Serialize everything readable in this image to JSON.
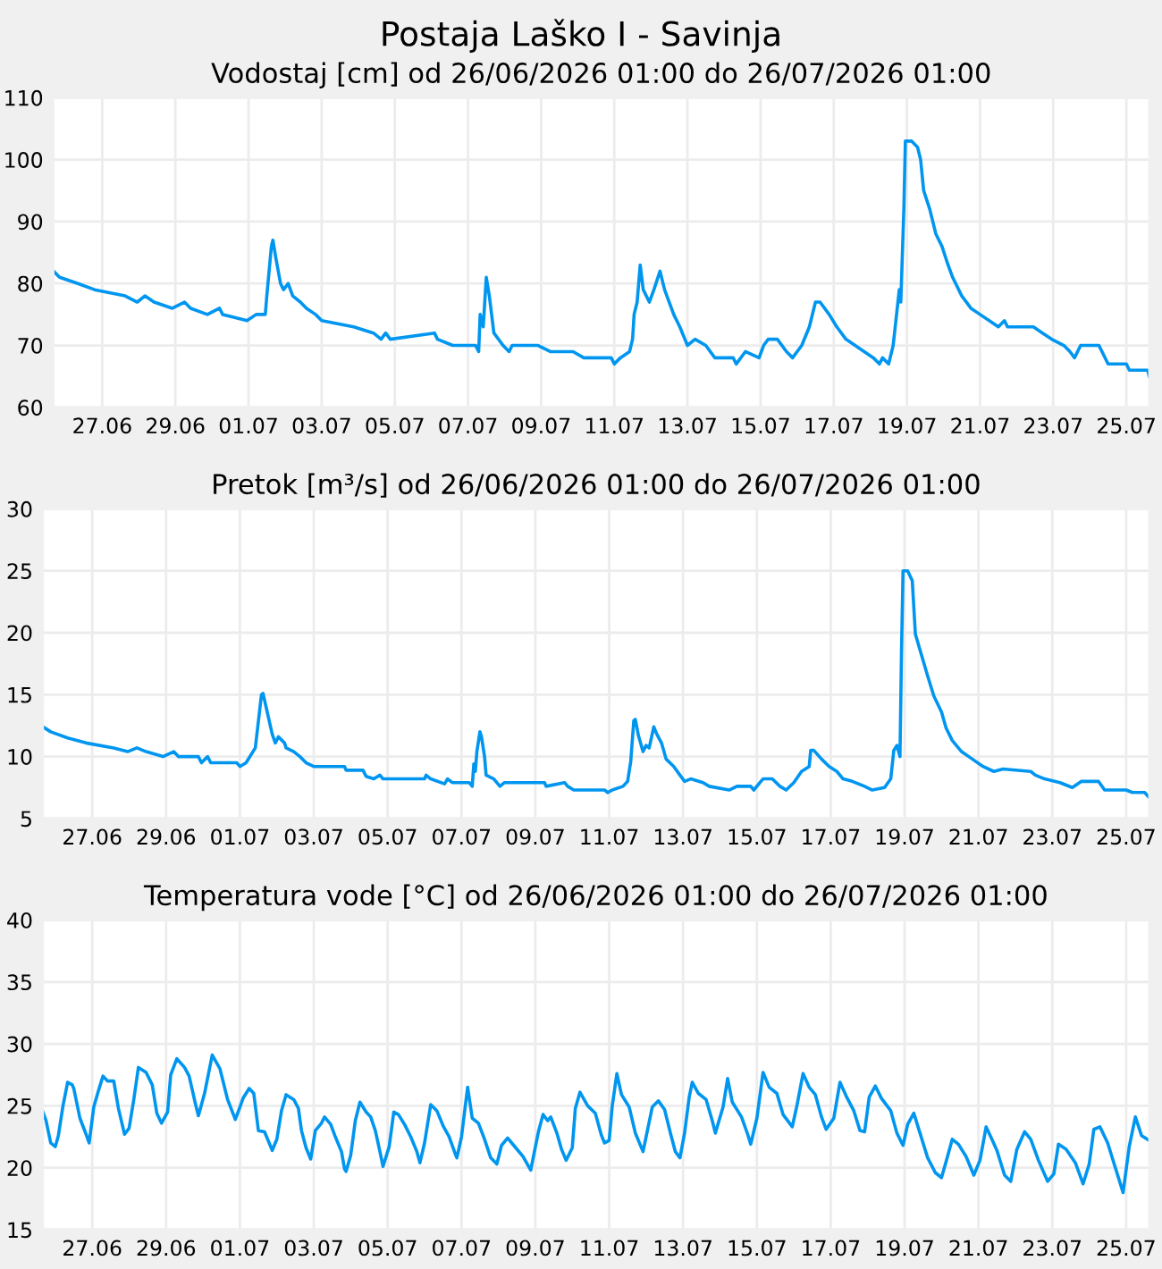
{
  "chart_data": [
    {
      "type": "line",
      "title": "Postaja Laško I - Savinja",
      "subtitle": "Vodostaj [cm] od 26/06/2026 01:00 do 26/07/2026 01:00",
      "xlim": [
        "2026-06-25T16:00",
        "2026-07-25T15:00"
      ],
      "xticks": [
        {
          "value": "2026-06-27",
          "label": "27.06"
        },
        {
          "value": "2026-06-29",
          "label": "29.06"
        },
        {
          "value": "2026-07-01",
          "label": "01.07"
        },
        {
          "value": "2026-07-03",
          "label": "03.07"
        },
        {
          "value": "2026-07-05",
          "label": "05.07"
        },
        {
          "value": "2026-07-07",
          "label": "07.07"
        },
        {
          "value": "2026-07-09",
          "label": "09.07"
        },
        {
          "value": "2026-07-11",
          "label": "11.07"
        },
        {
          "value": "2026-07-13",
          "label": "13.07"
        },
        {
          "value": "2026-07-15",
          "label": "15.07"
        },
        {
          "value": "2026-07-17",
          "label": "17.07"
        },
        {
          "value": "2026-07-19",
          "label": "19.07"
        },
        {
          "value": "2026-07-21",
          "label": "21.07"
        },
        {
          "value": "2026-07-23",
          "label": "23.07"
        },
        {
          "value": "2026-07-25",
          "label": "25.07"
        }
      ],
      "ylim": [
        60,
        110
      ],
      "yticks": [
        60,
        70,
        80,
        90,
        100,
        110
      ],
      "grid": true,
      "series": [
        {
          "color": "#0096f0",
          "x": [
            "2026-06-25T16:00",
            "2026-06-25T20:00",
            "2026-06-26T08:00",
            "2026-06-26T19:00",
            "2026-06-27T15:00",
            "2026-06-27T23:00",
            "2026-06-28T04:00",
            "2026-06-28T10:00",
            "2026-06-28T22:00",
            "2026-06-29T06:00",
            "2026-06-29T10:00",
            "2026-06-29T21:00",
            "2026-06-30T05:00",
            "2026-06-30T07:00",
            "2026-06-30T23:00",
            "2026-07-01T05:00",
            "2026-07-01T11:00",
            "2026-07-01T12:00",
            "2026-07-01T15:00",
            "2026-07-01T16:00",
            "2026-07-01T18:00",
            "2026-07-01T21:00",
            "2026-07-01T23:00",
            "2026-07-02T02:00",
            "2026-07-02T05:00",
            "2026-07-02T10:00",
            "2026-07-02T14:00",
            "2026-07-02T20:00",
            "2026-07-03T00:00",
            "2026-07-03T21:00",
            "2026-07-04T10:00",
            "2026-07-04T15:00",
            "2026-07-04T18:00",
            "2026-07-04T21:00",
            "2026-07-06T02:00",
            "2026-07-06T04:00",
            "2026-07-06T14:00",
            "2026-07-07T05:00",
            "2026-07-07T07:00",
            "2026-07-07T08:00",
            "2026-07-07T10:00",
            "2026-07-07T12:00",
            "2026-07-07T14:00",
            "2026-07-07T17:00",
            "2026-07-07T23:00",
            "2026-07-08T03:00",
            "2026-07-08T05:00",
            "2026-07-08T22:00",
            "2026-07-09T06:00",
            "2026-07-09T21:00",
            "2026-07-10T04:00",
            "2026-07-10T22:00",
            "2026-07-11T00:00",
            "2026-07-11T04:00",
            "2026-07-11T10:00",
            "2026-07-11T12:00",
            "2026-07-11T13:00",
            "2026-07-11T15:00",
            "2026-07-11T17:00",
            "2026-07-11T19:00",
            "2026-07-11T23:00",
            "2026-07-12T02:00",
            "2026-07-12T06:00",
            "2026-07-12T09:00",
            "2026-07-12T15:00",
            "2026-07-12T19:00",
            "2026-07-13T00:00",
            "2026-07-13T05:00",
            "2026-07-13T12:00",
            "2026-07-13T18:00",
            "2026-07-14T06:00",
            "2026-07-14T08:00",
            "2026-07-14T14:00",
            "2026-07-14T23:00",
            "2026-07-15T02:00",
            "2026-07-15T05:00",
            "2026-07-15T11:00",
            "2026-07-15T17:00",
            "2026-07-15T21:00",
            "2026-07-16T03:00",
            "2026-07-16T08:00",
            "2026-07-16T12:00",
            "2026-07-16T15:00",
            "2026-07-16T21:00",
            "2026-07-17T02:00",
            "2026-07-17T08:00",
            "2026-07-17T14:00",
            "2026-07-17T20:00",
            "2026-07-18T02:00",
            "2026-07-18T06:00",
            "2026-07-18T08:00",
            "2026-07-18T12:00",
            "2026-07-18T15:00",
            "2026-07-18T19:00",
            "2026-07-18T20:00",
            "2026-07-18T22:00",
            "2026-07-18T23:00",
            "2026-07-19T03:00",
            "2026-07-19T07:00",
            "2026-07-19T09:00",
            "2026-07-19T11:00",
            "2026-07-19T15:00",
            "2026-07-19T19:00",
            "2026-07-19T23:00",
            "2026-07-20T03:00",
            "2026-07-20T06:00",
            "2026-07-20T12:00",
            "2026-07-20T18:00",
            "2026-07-21T00:00",
            "2026-07-21T06:00",
            "2026-07-21T12:00",
            "2026-07-21T16:00",
            "2026-07-21T18:00",
            "2026-07-22T11:00",
            "2026-07-22T17:00",
            "2026-07-22T23:00",
            "2026-07-23T07:00",
            "2026-07-23T11:00",
            "2026-07-23T14:00",
            "2026-07-23T18:00",
            "2026-07-24T06:00",
            "2026-07-24T12:00",
            "2026-07-25T00:00",
            "2026-07-25T02:00",
            "2026-07-25T14:00",
            "2026-07-25T15:00"
          ],
          "values": [
            82,
            81,
            80,
            79,
            78,
            77,
            78,
            77,
            76,
            77,
            76,
            75,
            76,
            75,
            74,
            75,
            75,
            78,
            86,
            87,
            84,
            80,
            79,
            80,
            78,
            77,
            76,
            75,
            74,
            73,
            72,
            71,
            72,
            71,
            72,
            71,
            70,
            70,
            69,
            75,
            73,
            81,
            78,
            72,
            70,
            69,
            70,
            70,
            69,
            69,
            68,
            68,
            67,
            68,
            69,
            71,
            75,
            77,
            83,
            79,
            77,
            79,
            82,
            79,
            75,
            73,
            70,
            71,
            70,
            68,
            68,
            67,
            69,
            68,
            70,
            71,
            71,
            69,
            68,
            70,
            73,
            77,
            77,
            75,
            73,
            71,
            70,
            69,
            68,
            67,
            68,
            67,
            70,
            79,
            77,
            92,
            103,
            103,
            102,
            100,
            95,
            92,
            88,
            86,
            83,
            81,
            78,
            76,
            75,
            74,
            73,
            74,
            73,
            73,
            72,
            71,
            70,
            69,
            68,
            70,
            70,
            67,
            67,
            66,
            66,
            65
          ]
        }
      ]
    },
    {
      "type": "line",
      "title": "Pretok [m³/s] od 26/06/2026 01:00 do 26/07/2026 01:00",
      "xlim": [
        "2026-06-25T16:00",
        "2026-07-25T15:00"
      ],
      "xticks": [
        {
          "value": "2026-06-27",
          "label": "27.06"
        },
        {
          "value": "2026-06-29",
          "label": "29.06"
        },
        {
          "value": "2026-07-01",
          "label": "01.07"
        },
        {
          "value": "2026-07-03",
          "label": "03.07"
        },
        {
          "value": "2026-07-05",
          "label": "05.07"
        },
        {
          "value": "2026-07-07",
          "label": "07.07"
        },
        {
          "value": "2026-07-09",
          "label": "09.07"
        },
        {
          "value": "2026-07-11",
          "label": "11.07"
        },
        {
          "value": "2026-07-13",
          "label": "13.07"
        },
        {
          "value": "2026-07-15",
          "label": "15.07"
        },
        {
          "value": "2026-07-17",
          "label": "17.07"
        },
        {
          "value": "2026-07-19",
          "label": "19.07"
        },
        {
          "value": "2026-07-21",
          "label": "21.07"
        },
        {
          "value": "2026-07-23",
          "label": "23.07"
        },
        {
          "value": "2026-07-25",
          "label": "25.07"
        }
      ],
      "ylim": [
        5,
        30
      ],
      "yticks": [
        5,
        10,
        15,
        20,
        25,
        30
      ],
      "grid": true,
      "series": [
        {
          "color": "#0096f0",
          "x": [
            "2026-06-25T16:00",
            "2026-06-25T21:00",
            "2026-06-26T08:00",
            "2026-06-26T20:00",
            "2026-06-27T14:00",
            "2026-06-27T23:00",
            "2026-06-28T05:00",
            "2026-06-28T11:00",
            "2026-06-28T22:00",
            "2026-06-29T05:00",
            "2026-06-29T08:00",
            "2026-06-29T21:00",
            "2026-06-29T23:00",
            "2026-06-30T03:00",
            "2026-06-30T05:00",
            "2026-06-30T22:00",
            "2026-07-01T00:00",
            "2026-07-01T04:00",
            "2026-07-01T10:00",
            "2026-07-01T14:00",
            "2026-07-01T15:00",
            "2026-07-01T19:00",
            "2026-07-01T21:00",
            "2026-07-01T23:00",
            "2026-07-02T01:00",
            "2026-07-02T05:00",
            "2026-07-02T06:00",
            "2026-07-02T11:00",
            "2026-07-02T15:00",
            "2026-07-02T19:00",
            "2026-07-03T00:00",
            "2026-07-03T20:00",
            "2026-07-03T21:00",
            "2026-07-04T08:00",
            "2026-07-04T10:00",
            "2026-07-04T15:00",
            "2026-07-04T19:00",
            "2026-07-04T21:00",
            "2026-07-06T00:00",
            "2026-07-06T01:00",
            "2026-07-06T04:00",
            "2026-07-06T13:00",
            "2026-07-06T15:00",
            "2026-07-06T18:00",
            "2026-07-07T05:00",
            "2026-07-07T07:00",
            "2026-07-07T08:00",
            "2026-07-07T09:00",
            "2026-07-07T10:00",
            "2026-07-07T12:00",
            "2026-07-07T13:00",
            "2026-07-07T15:00",
            "2026-07-07T16:00",
            "2026-07-07T21:00",
            "2026-07-08T01:00",
            "2026-07-08T04:00",
            "2026-07-08T22:00",
            "2026-07-09T06:00",
            "2026-07-09T07:00",
            "2026-07-09T19:00",
            "2026-07-09T21:00",
            "2026-07-10T01:00",
            "2026-07-10T08:00",
            "2026-07-10T21:00",
            "2026-07-10T23:00",
            "2026-07-11T02:00",
            "2026-07-11T09:00",
            "2026-07-11T12:00",
            "2026-07-11T14:00",
            "2026-07-11T16:00",
            "2026-07-11T17:00",
            "2026-07-11T19:00",
            "2026-07-11T22:00",
            "2026-07-12T00:00",
            "2026-07-12T02:00",
            "2026-07-12T05:00",
            "2026-07-12T07:00",
            "2026-07-12T10:00",
            "2026-07-12T13:00",
            "2026-07-12T18:00",
            "2026-07-12T22:00",
            "2026-07-13T01:00",
            "2026-07-13T05:00",
            "2026-07-13T13:00",
            "2026-07-13T17:00",
            "2026-07-14T06:00",
            "2026-07-14T11:00",
            "2026-07-14T20:00",
            "2026-07-14T22:00",
            "2026-07-15T02:00",
            "2026-07-15T04:00",
            "2026-07-15T10:00",
            "2026-07-15T15:00",
            "2026-07-15T19:00",
            "2026-07-16T00:00",
            "2026-07-16T05:00",
            "2026-07-16T10:00",
            "2026-07-16T11:00",
            "2026-07-16T13:00",
            "2026-07-16T18:00",
            "2026-07-16T23:00",
            "2026-07-17T04:00",
            "2026-07-17T08:00",
            "2026-07-17T14:00",
            "2026-07-17T22:00",
            "2026-07-18T03:00",
            "2026-07-18T11:00",
            "2026-07-18T15:00",
            "2026-07-18T17:00",
            "2026-07-18T19:00",
            "2026-07-18T21:00",
            "2026-07-18T22:00",
            "2026-07-18T23:00",
            "2026-07-19T02:00",
            "2026-07-19T05:00",
            "2026-07-19T07:00",
            "2026-07-19T11:00",
            "2026-07-19T15:00",
            "2026-07-19T19:00",
            "2026-07-20T00:00",
            "2026-07-20T03:00",
            "2026-07-20T07:00",
            "2026-07-20T13:00",
            "2026-07-20T20:00",
            "2026-07-21T03:00",
            "2026-07-21T10:00",
            "2026-07-21T16:00",
            "2026-07-22T10:00",
            "2026-07-22T13:00",
            "2026-07-22T19:00",
            "2026-07-23T05:00",
            "2026-07-23T13:00",
            "2026-07-23T19:00",
            "2026-07-24T06:00",
            "2026-07-24T10:00",
            "2026-07-25T00:00",
            "2026-07-25T04:00",
            "2026-07-25T12:00",
            "2026-07-25T15:00"
          ],
          "values": [
            12.4,
            12.0,
            11.5,
            11.1,
            10.7,
            10.4,
            10.7,
            10.4,
            10.0,
            10.4,
            10.0,
            10.0,
            9.5,
            10.0,
            9.5,
            9.5,
            9.2,
            9.5,
            10.7,
            15.0,
            15.1,
            12.9,
            11.8,
            11.1,
            11.6,
            11.1,
            10.7,
            10.4,
            10.0,
            9.5,
            9.2,
            9.2,
            8.9,
            8.9,
            8.4,
            8.2,
            8.5,
            8.2,
            8.2,
            8.5,
            8.2,
            7.8,
            8.2,
            7.9,
            7.9,
            7.6,
            9.4,
            8.8,
            10.4,
            12.0,
            11.6,
            10.0,
            8.5,
            8.2,
            7.6,
            7.9,
            7.9,
            7.9,
            7.6,
            7.9,
            7.6,
            7.3,
            7.3,
            7.3,
            7.1,
            7.3,
            7.6,
            8.0,
            9.6,
            12.9,
            13.0,
            11.7,
            10.4,
            10.9,
            10.7,
            12.4,
            11.8,
            11.1,
            9.8,
            9.2,
            8.5,
            8.0,
            8.2,
            7.9,
            7.6,
            7.3,
            7.6,
            7.6,
            7.3,
            7.9,
            8.2,
            8.2,
            7.6,
            7.3,
            7.9,
            8.8,
            9.2,
            10.5,
            10.5,
            9.8,
            9.2,
            8.8,
            8.2,
            8.0,
            7.6,
            7.3,
            7.5,
            8.2,
            10.5,
            10.9,
            10.0,
            18.5,
            25.0,
            25.0,
            24.2,
            19.9,
            18.2,
            16.5,
            14.9,
            13.6,
            12.3,
            11.3,
            10.4,
            9.8,
            9.2,
            8.8,
            9.0,
            8.8,
            8.5,
            8.2,
            7.9,
            7.5,
            8.0,
            8.0,
            7.3,
            7.3,
            7.1,
            7.1,
            6.7
          ]
        }
      ]
    },
    {
      "type": "line",
      "title": "Temperatura vode [°C] od 26/06/2026 01:00 do 26/07/2026 01:00",
      "xlim": [
        "2026-06-25T16:00",
        "2026-07-25T15:00"
      ],
      "xticks": [
        {
          "value": "2026-06-27",
          "label": "27.06"
        },
        {
          "value": "2026-06-29",
          "label": "29.06"
        },
        {
          "value": "2026-07-01",
          "label": "01.07"
        },
        {
          "value": "2026-07-03",
          "label": "03.07"
        },
        {
          "value": "2026-07-05",
          "label": "05.07"
        },
        {
          "value": "2026-07-07",
          "label": "07.07"
        },
        {
          "value": "2026-07-09",
          "label": "09.07"
        },
        {
          "value": "2026-07-11",
          "label": "11.07"
        },
        {
          "value": "2026-07-13",
          "label": "13.07"
        },
        {
          "value": "2026-07-15",
          "label": "15.07"
        },
        {
          "value": "2026-07-17",
          "label": "17.07"
        },
        {
          "value": "2026-07-19",
          "label": "19.07"
        },
        {
          "value": "2026-07-21",
          "label": "21.07"
        },
        {
          "value": "2026-07-23",
          "label": "23.07"
        },
        {
          "value": "2026-07-25",
          "label": "25.07"
        }
      ],
      "ylim": [
        15,
        40
      ],
      "yticks": [
        15,
        20,
        25,
        30,
        35,
        40
      ],
      "grid": true,
      "series": [
        {
          "color": "#0096f0",
          "x": [
            "2026-06-25T16:00",
            "2026-06-25T18:00",
            "2026-06-25T21:00",
            "2026-06-26T00:00",
            "2026-06-26T02:00",
            "2026-06-26T05:00",
            "2026-06-26T08:00",
            "2026-06-26T11:00",
            "2026-06-26T12:00",
            "2026-06-26T16:00",
            "2026-06-26T20:00",
            "2026-06-26T22:00",
            "2026-06-27T01:00",
            "2026-06-27T04:00",
            "2026-06-27T07:00",
            "2026-06-27T10:00",
            "2026-06-27T14:00",
            "2026-06-27T17:00",
            "2026-06-27T21:00",
            "2026-06-28T00:00",
            "2026-06-28T03:00",
            "2026-06-28T06:00",
            "2026-06-28T11:00",
            "2026-06-28T15:00",
            "2026-06-28T18:00",
            "2026-06-28T21:00",
            "2026-06-29T01:00",
            "2026-06-29T03:00",
            "2026-06-29T07:00",
            "2026-06-29T12:00",
            "2026-06-29T15:00",
            "2026-06-29T19:00",
            "2026-06-29T21:00",
            "2026-06-30T01:00",
            "2026-06-30T06:00",
            "2026-06-30T11:00",
            "2026-06-30T16:00",
            "2026-06-30T21:00",
            "2026-07-01T00:00",
            "2026-07-01T02:00",
            "2026-07-01T06:00",
            "2026-07-01T09:00",
            "2026-07-01T12:00",
            "2026-07-01T16:00",
            "2026-07-01T21:00",
            "2026-07-02T00:00",
            "2026-07-02T03:00",
            "2026-07-02T06:00",
            "2026-07-02T11:00",
            "2026-07-02T14:00",
            "2026-07-02T16:00",
            "2026-07-02T19:00",
            "2026-07-02T22:00",
            "2026-07-03T01:00",
            "2026-07-03T05:00",
            "2026-07-03T07:00",
            "2026-07-03T11:00",
            "2026-07-03T14:00",
            "2026-07-03T18:00",
            "2026-07-03T20:00",
            "2026-07-03T21:00",
            "2026-07-04T00:00",
            "2026-07-04T03:00",
            "2026-07-04T06:00",
            "2026-07-04T10:00",
            "2026-07-04T13:00",
            "2026-07-04T16:00",
            "2026-07-04T19:00",
            "2026-07-04T21:00",
            "2026-07-05T01:00",
            "2026-07-05T04:00",
            "2026-07-05T07:00",
            "2026-07-05T11:00",
            "2026-07-05T15:00",
            "2026-07-05T19:00",
            "2026-07-05T21:00",
            "2026-07-06T00:00",
            "2026-07-06T04:00",
            "2026-07-06T08:00",
            "2026-07-06T12:00",
            "2026-07-06T16:00",
            "2026-07-06T20:00",
            "2026-07-06T21:00",
            "2026-07-07T00:00",
            "2026-07-07T04:00",
            "2026-07-07T07:00",
            "2026-07-07T11:00",
            "2026-07-07T15:00",
            "2026-07-07T19:00",
            "2026-07-07T23:00",
            "2026-07-08T02:00",
            "2026-07-08T06:00",
            "2026-07-08T10:00",
            "2026-07-08T16:00",
            "2026-07-08T21:00",
            "2026-07-09T02:00",
            "2026-07-09T05:00",
            "2026-07-09T08:00",
            "2026-07-09T10:00",
            "2026-07-09T14:00",
            "2026-07-09T17:00",
            "2026-07-09T20:00",
            "2026-07-10T00:00",
            "2026-07-10T02:00",
            "2026-07-10T05:00",
            "2026-07-10T10:00",
            "2026-07-10T15:00",
            "2026-07-10T19:00",
            "2026-07-10T21:00",
            "2026-07-11T00:00",
            "2026-07-11T02:00",
            "2026-07-11T05:00",
            "2026-07-11T08:00",
            "2026-07-11T13:00",
            "2026-07-11T17:00",
            "2026-07-11T22:00",
            "2026-07-12T00:00",
            "2026-07-12T04:00",
            "2026-07-12T08:00",
            "2026-07-12T12:00",
            "2026-07-12T16:00",
            "2026-07-12T19:00",
            "2026-07-12T22:00",
            "2026-07-13T01:00",
            "2026-07-13T04:00",
            "2026-07-13T06:00",
            "2026-07-13T10:00",
            "2026-07-13T15:00",
            "2026-07-13T19:00",
            "2026-07-13T21:00",
            "2026-07-14T02:00",
            "2026-07-14T05:00",
            "2026-07-14T08:00",
            "2026-07-14T14:00",
            "2026-07-14T18:00",
            "2026-07-14T20:00",
            "2026-07-15T00:00",
            "2026-07-15T04:00",
            "2026-07-15T08:00",
            "2026-07-15T13:00",
            "2026-07-15T17:00",
            "2026-07-15T23:00",
            "2026-07-16T02:00",
            "2026-07-16T06:00",
            "2026-07-16T10:00",
            "2026-07-16T14:00",
            "2026-07-16T18:00",
            "2026-07-16T21:00",
            "2026-07-17T02:00",
            "2026-07-17T06:00",
            "2026-07-17T10:00",
            "2026-07-17T15:00",
            "2026-07-17T19:00",
            "2026-07-17T22:00",
            "2026-07-18T01:00",
            "2026-07-18T05:00",
            "2026-07-18T09:00",
            "2026-07-18T15:00",
            "2026-07-18T19:00",
            "2026-07-18T23:00",
            "2026-07-19T02:00",
            "2026-07-19T06:00",
            "2026-07-19T10:00",
            "2026-07-19T15:00",
            "2026-07-19T20:00",
            "2026-07-20T00:00",
            "2026-07-20T03:00",
            "2026-07-20T07:00",
            "2026-07-20T11:00",
            "2026-07-20T16:00",
            "2026-07-20T21:00",
            "2026-07-21T01:00",
            "2026-07-21T05:00",
            "2026-07-21T08:00",
            "2026-07-21T12:00",
            "2026-07-21T17:00",
            "2026-07-21T21:00",
            "2026-07-22T01:00",
            "2026-07-22T06:00",
            "2026-07-22T10:00",
            "2026-07-22T15:00",
            "2026-07-22T21:00",
            "2026-07-23T01:00",
            "2026-07-23T04:00",
            "2026-07-23T09:00",
            "2026-07-23T15:00",
            "2026-07-23T20:00",
            "2026-07-24T00:00",
            "2026-07-24T03:00",
            "2026-07-24T07:00",
            "2026-07-24T12:00",
            "2026-07-24T17:00",
            "2026-07-24T22:00",
            "2026-07-25T02:00",
            "2026-07-25T06:00",
            "2026-07-25T10:00",
            "2026-07-25T15:00"
          ],
          "values": [
            24.5,
            23.8,
            22.0,
            21.7,
            22.6,
            25.0,
            26.9,
            26.7,
            26.4,
            24.0,
            22.7,
            22.0,
            24.9,
            26.2,
            27.4,
            27.0,
            27.0,
            24.8,
            22.7,
            23.2,
            25.5,
            28.1,
            27.7,
            26.7,
            24.4,
            23.6,
            24.5,
            27.5,
            28.8,
            28.1,
            27.4,
            25.2,
            24.2,
            26.0,
            29.1,
            28.0,
            25.5,
            23.9,
            24.9,
            25.6,
            26.4,
            26.0,
            23.0,
            22.9,
            21.4,
            22.3,
            24.6,
            25.9,
            25.5,
            24.8,
            23.0,
            21.6,
            20.7,
            23.0,
            23.6,
            24.1,
            23.5,
            22.5,
            21.3,
            19.9,
            19.7,
            21.0,
            23.8,
            25.3,
            24.5,
            24.1,
            23.0,
            21.3,
            20.1,
            21.7,
            24.5,
            24.3,
            23.5,
            22.5,
            21.3,
            20.4,
            22.0,
            25.1,
            24.6,
            23.4,
            22.5,
            21.1,
            20.8,
            22.5,
            26.5,
            24.0,
            23.6,
            22.3,
            20.8,
            20.3,
            21.8,
            22.4,
            21.8,
            20.9,
            19.8,
            22.9,
            24.3,
            23.8,
            24.1,
            22.8,
            21.5,
            20.6,
            21.6,
            24.8,
            26.1,
            25.0,
            24.4,
            22.6,
            22.0,
            22.2,
            25.0,
            27.6,
            25.9,
            24.9,
            22.8,
            21.3,
            22.5,
            24.9,
            25.4,
            24.7,
            22.7,
            21.3,
            20.8,
            22.8,
            25.7,
            26.9,
            26.0,
            25.5,
            23.8,
            22.8,
            24.9,
            27.2,
            25.3,
            24.1,
            22.7,
            21.9,
            24.0,
            27.7,
            26.5,
            26.0,
            24.3,
            23.3,
            25.0,
            27.6,
            26.5,
            25.9,
            24.1,
            23.1,
            24.0,
            26.9,
            25.8,
            24.6,
            23.0,
            22.9,
            25.7,
            26.6,
            25.6,
            24.6,
            22.8,
            21.8,
            23.5,
            24.4,
            22.8,
            20.8,
            19.6,
            19.2,
            20.5,
            22.3,
            21.9,
            20.9,
            19.4,
            20.6,
            23.3,
            22.5,
            21.4,
            19.4,
            18.9,
            21.5,
            22.9,
            22.3,
            20.6,
            18.9,
            19.5,
            21.9,
            21.5,
            20.4,
            18.7,
            20.3,
            23.1,
            23.3,
            22.0,
            20.0,
            18.0,
            21.7,
            24.1,
            22.6,
            22.2
          ]
        }
      ]
    }
  ]
}
